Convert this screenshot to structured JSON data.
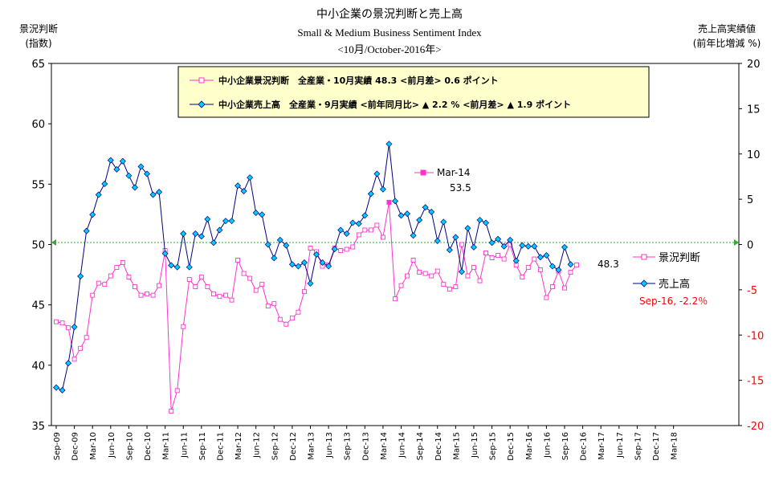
{
  "chart_data": {
    "type": "line",
    "title": "中小企業の景況判断と売上高",
    "subtitle": "Small & Medium Business Sentiment Index",
    "subtitle2": "<10月/October-2016年>",
    "ylabel_left": "景況判断",
    "ylabel_left2": "(指数)",
    "ylabel_right": "売上高実績値",
    "ylabel_right2": "(前年比増減 %)",
    "ylim_left": [
      35,
      65
    ],
    "ylim_right": [
      -20,
      20
    ],
    "yticks_left": [
      "35",
      "40",
      "45",
      "50",
      "55",
      "60",
      "65"
    ],
    "yticks_right": [
      "-20",
      "-15",
      "-10",
      "-5",
      "0",
      "5",
      "10",
      "15",
      "20"
    ],
    "xticks": [
      "Sep-09",
      "Dec-09",
      "Mar-10",
      "Jun-10",
      "Sep-10",
      "Dec-10",
      "Mar-11",
      "Jun-11",
      "Sep-11",
      "Dec-11",
      "Mar-12",
      "Jun-12",
      "Sep-12",
      "Dec-12",
      "Mar-13",
      "Jun-13",
      "Sep-13",
      "Dec-13",
      "Mar-14",
      "Jun-14",
      "Sep-14",
      "Dec-14",
      "Mar-15",
      "Jun-15",
      "Sep-15",
      "Dec-15",
      "Mar-16",
      "Jun-16",
      "Sep-16",
      "Dec-16",
      "Mar-17",
      "Jun-17",
      "Sep-17",
      "Dec-17",
      "Mar-18"
    ],
    "grid": false,
    "legend_box": {
      "line1": "中小企業景況判断　全産業・10月実績 48.3 <前月差> 0.6 ポイント",
      "line2": "中小企業売上高　全産業・9月実績 <前年同月比> ▲ 2.2 % <前月差> ▲ 1.9 ポイント"
    },
    "series": [
      {
        "name": "景況判断",
        "axis": "left",
        "color": "#ff33cc",
        "marker": "square",
        "start": "Sep-09",
        "values": [
          43.6,
          43.5,
          43.1,
          40.5,
          41.4,
          42.3,
          45.8,
          46.8,
          46.7,
          47.4,
          48.1,
          48.5,
          47.3,
          46.5,
          45.8,
          45.9,
          45.8,
          46.6,
          49.5,
          36.2,
          37.9,
          43.2,
          47.1,
          46.5,
          47.3,
          46.5,
          45.9,
          45.7,
          45.8,
          45.4,
          48.7,
          47.6,
          47.2,
          46.2,
          46.7,
          44.9,
          45.1,
          43.8,
          43.4,
          43.9,
          44.4,
          46.1,
          49.7,
          49.4,
          48.2,
          48.3,
          49.7,
          49.5,
          49.6,
          49.8,
          50.8,
          51.2,
          51.2,
          51.6,
          50.6,
          53.5,
          45.5,
          46.6,
          47.4,
          48.7,
          47.7,
          47.6,
          47.4,
          47.8,
          46.7,
          46.3,
          46.5,
          50.0,
          47.4,
          48.1,
          47.0,
          49.3,
          48.9,
          49.1,
          48.8,
          50.0,
          48.3,
          47.3,
          48.1,
          48.8,
          47.9,
          45.6,
          46.5,
          47.8,
          46.4,
          47.7,
          48.3
        ]
      },
      {
        "name": "売上高",
        "axis": "right",
        "color": "#000080",
        "marker_fill": "#00ccff",
        "marker": "diamond",
        "start": "Sep-09",
        "values": [
          -15.8,
          -16.1,
          -13.1,
          -9.1,
          -3.5,
          1.5,
          3.3,
          5.5,
          6.7,
          9.3,
          8.3,
          9.2,
          7.6,
          6.3,
          8.6,
          7.8,
          5.5,
          5.8,
          -1.0,
          -2.3,
          -2.5,
          1.2,
          -2.5,
          1.2,
          0.9,
          2.8,
          0.2,
          1.6,
          2.6,
          2.6,
          6.5,
          5.9,
          7.4,
          3.5,
          3.3,
          0.0,
          -1.5,
          0.5,
          -0.1,
          -2.2,
          -2.4,
          -2.0,
          -4.3,
          -1.1,
          -2.0,
          -2.4,
          -0.5,
          1.6,
          1.2,
          2.4,
          2.3,
          3.2,
          5.6,
          7.8,
          6.1,
          11.1,
          4.8,
          3.2,
          3.4,
          1.0,
          2.7,
          4.1,
          3.6,
          0.4,
          2.5,
          -0.6,
          0.8,
          -3.0,
          1.8,
          -0.3,
          2.7,
          2.4,
          0.2,
          0.6,
          -0.2,
          0.5,
          -1.8,
          -0.1,
          -0.2,
          -0.2,
          -1.4,
          -1.2,
          -2.4,
          -2.8,
          -0.3,
          -2.2
        ]
      }
    ],
    "annotations": {
      "peak_label": "Mar-14",
      "peak_value": "53.5",
      "last_value": "48.3",
      "legend_right_1": "景況判断",
      "legend_right_2": "売上高",
      "latest_sales": "Sep-16, -2.2％"
    }
  }
}
